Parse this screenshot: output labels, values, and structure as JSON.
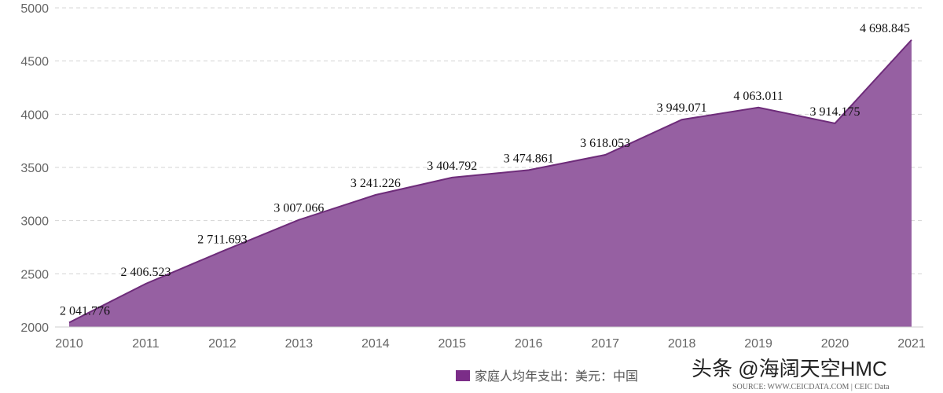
{
  "chart_data": {
    "type": "area",
    "x": [
      "2010",
      "2011",
      "2012",
      "2013",
      "2014",
      "2015",
      "2016",
      "2017",
      "2018",
      "2019",
      "2020",
      "2021"
    ],
    "series": [
      {
        "name": "家庭人均年支出：美元：中国",
        "values": [
          2041.776,
          2406.523,
          2711.693,
          3007.066,
          3241.226,
          3404.792,
          3474.861,
          3618.053,
          3949.071,
          4063.011,
          3914.175,
          4698.845
        ],
        "labels": [
          "2 041.776",
          "2 406.523",
          "2 711.693",
          "3 007.066",
          "3 241.226",
          "3 404.792",
          "3 474.861",
          "3 618.053",
          "3 949.071",
          "4 063.011",
          "3 914.175",
          "4 698.845"
        ]
      }
    ],
    "yticks": [
      "2000",
      "2500",
      "3000",
      "3500",
      "4000",
      "4500",
      "5000"
    ],
    "ylim": [
      2000,
      5000
    ],
    "grid": "horizontal-dashed",
    "legend": "bottom",
    "color": "#9660a2",
    "line_color": "#6e2c7a",
    "legend_color": "#7b2d88"
  },
  "watermark": "头条 @海阔天空HMC",
  "source": "SOURCE: WWW.CEICDATA.COM | CEIC Data"
}
